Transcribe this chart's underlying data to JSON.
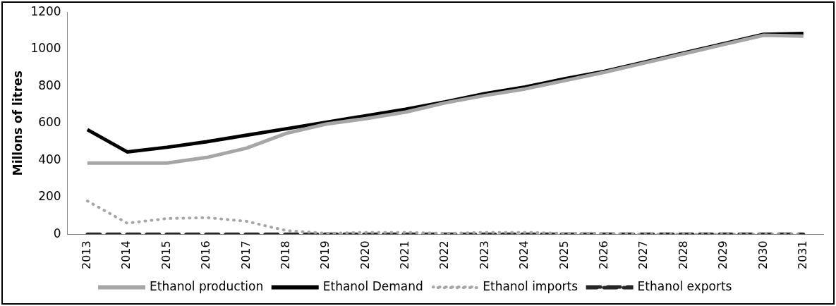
{
  "chart_data": {
    "type": "line",
    "ylabel": "Millons of litres",
    "categories": [
      "2013",
      "2014",
      "2015",
      "2016",
      "2017",
      "2018",
      "2019",
      "2020",
      "2021",
      "2022",
      "2023",
      "2024",
      "2025",
      "2026",
      "2027",
      "2028",
      "2029",
      "2030",
      "2031"
    ],
    "series": [
      {
        "name": "Ethanol production",
        "color": "#a6a6a6",
        "line_style": "solid",
        "values": [
          385,
          385,
          385,
          415,
          465,
          545,
          595,
          625,
          660,
          710,
          750,
          785,
          830,
          875,
          925,
          975,
          1025,
          1075,
          1070
        ]
      },
      {
        "name": "Ethanol Demand",
        "color": "#000000",
        "line_style": "solid",
        "values": [
          565,
          445,
          470,
          500,
          535,
          570,
          605,
          640,
          675,
          715,
          760,
          795,
          840,
          880,
          930,
          980,
          1030,
          1080,
          1085
        ]
      },
      {
        "name": "Ethanol imports",
        "color": "#a6a6a6",
        "line_style": "dotted",
        "values": [
          180,
          60,
          85,
          90,
          70,
          20,
          5,
          10,
          10,
          5,
          10,
          10,
          5,
          5,
          0,
          0,
          0,
          0,
          0
        ]
      },
      {
        "name": "Ethanol exports",
        "color": "#262626",
        "line_style": "dashed",
        "values": [
          0,
          0,
          0,
          0,
          0,
          0,
          0,
          0,
          0,
          0,
          0,
          0,
          0,
          0,
          0,
          0,
          0,
          0,
          0
        ]
      }
    ],
    "ylim": [
      0,
      1200
    ],
    "yticks": [
      0,
      200,
      400,
      600,
      800,
      1000,
      1200
    ],
    "grid": false,
    "legend": "bottom",
    "marker": "none"
  }
}
